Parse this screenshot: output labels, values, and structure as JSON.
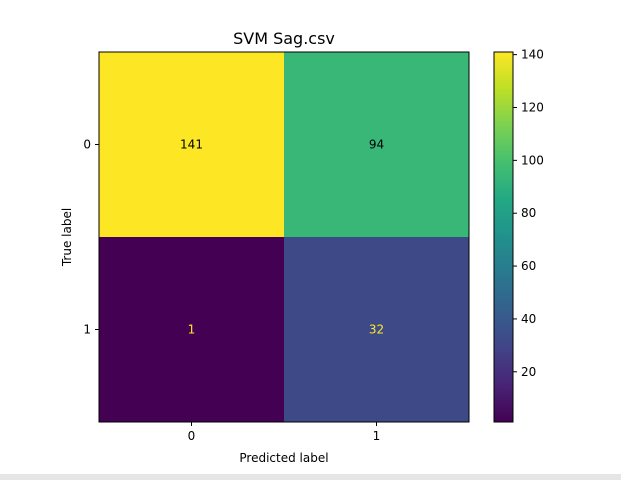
{
  "chart_data": {
    "type": "heatmap",
    "title": "SVM Sag.csv",
    "xlabel": "Predicted label",
    "ylabel": "True label",
    "x_categories": [
      "0",
      "1"
    ],
    "y_categories": [
      "0",
      "1"
    ],
    "matrix": [
      [
        141,
        94
      ],
      [
        1,
        32
      ]
    ],
    "colormap": "viridis",
    "colorbar": {
      "min": 1,
      "max": 141,
      "ticks": [
        20,
        40,
        60,
        80,
        100,
        120,
        140
      ]
    },
    "grid": false
  },
  "colors": {
    "text_dark": "#000000",
    "text_light": "#fde725",
    "strip": "#e6e6e6"
  }
}
